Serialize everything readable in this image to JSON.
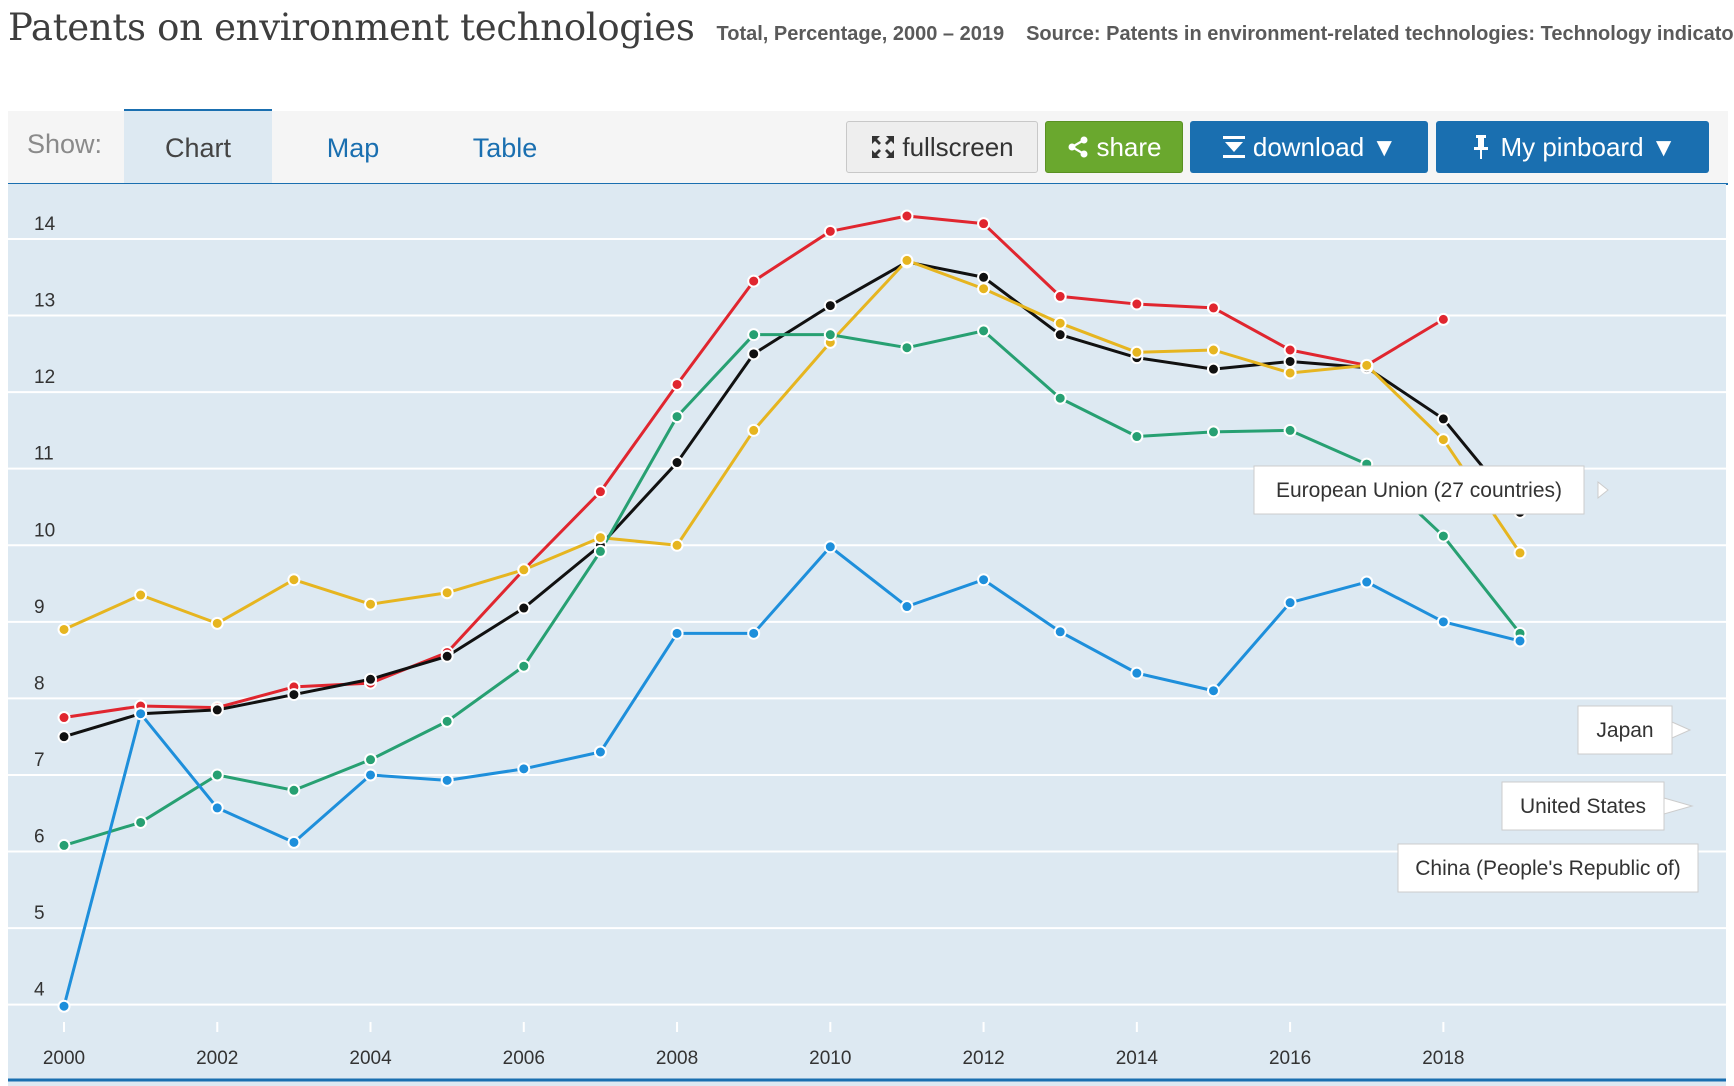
{
  "header": {
    "title": "Patents on environment technologies",
    "subtitle": "Total, Percentage, 2000 – 2019",
    "source": "Source: Patents in environment-related technologies: Technology indicators"
  },
  "toolbar": {
    "show_label": "Show:",
    "tabs": [
      {
        "label": "Chart",
        "active": true
      },
      {
        "label": "Map",
        "active": false
      },
      {
        "label": "Table",
        "active": false
      }
    ],
    "buttons": {
      "fullscreen": "fullscreen",
      "share": "share",
      "download": "download ▼",
      "pinboard": "My pinboard ▼"
    },
    "icons": {
      "fullscreen": "expand-arrows-icon",
      "share": "share-icon",
      "download": "download-arrow-icon",
      "pinboard": "pin-icon"
    },
    "colors": {
      "accent": "#1a6fb0",
      "share": "#6aa82e",
      "chart_bg": "#dde9f2"
    }
  },
  "chart_data": {
    "type": "line",
    "title": "Patents on environment technologies",
    "x": [
      2000,
      2001,
      2002,
      2003,
      2004,
      2005,
      2006,
      2007,
      2008,
      2009,
      2010,
      2011,
      2012,
      2013,
      2014,
      2015,
      2016,
      2017,
      2018,
      2019
    ],
    "x_ticks": [
      2000,
      2002,
      2004,
      2006,
      2008,
      2010,
      2012,
      2014,
      2016,
      2018
    ],
    "y_ticks": [
      4,
      5,
      6,
      7,
      8,
      9,
      10,
      11,
      12,
      13,
      14
    ],
    "ylim": [
      3.8,
      14.3
    ],
    "grid": true,
    "legend": "callouts at right end of series",
    "series": [
      {
        "name": "European Union (27 countries)",
        "color": "#e0262f",
        "values": [
          7.75,
          7.9,
          7.88,
          8.15,
          8.2,
          8.6,
          9.68,
          10.7,
          12.1,
          13.45,
          14.1,
          14.3,
          14.2,
          13.25,
          13.15,
          13.1,
          12.55,
          12.35,
          12.95,
          null
        ]
      },
      {
        "name": "",
        "color": "#111111",
        "values": [
          7.5,
          7.8,
          7.85,
          8.05,
          8.25,
          8.55,
          9.18,
          10.0,
          11.08,
          12.5,
          13.13,
          13.7,
          13.5,
          12.75,
          12.45,
          12.3,
          12.4,
          12.32,
          11.65,
          10.43
        ]
      },
      {
        "name": "Japan",
        "color": "#e6b520",
        "values": [
          8.9,
          9.35,
          8.98,
          9.55,
          9.23,
          9.38,
          9.68,
          10.1,
          10.0,
          11.5,
          12.65,
          13.72,
          13.35,
          12.9,
          12.52,
          12.55,
          12.25,
          12.35,
          11.38,
          9.9
        ]
      },
      {
        "name": "United States",
        "color": "#27a072",
        "values": [
          6.08,
          6.38,
          7.0,
          6.8,
          7.2,
          7.7,
          8.42,
          9.92,
          11.68,
          12.75,
          12.75,
          12.58,
          12.8,
          11.92,
          11.42,
          11.48,
          11.5,
          11.06,
          10.12,
          8.85
        ]
      },
      {
        "name": "China (People's Republic of)",
        "color": "#1e8fdb",
        "values": [
          3.98,
          7.8,
          6.57,
          6.12,
          7.0,
          6.93,
          7.08,
          7.3,
          8.85,
          8.85,
          9.98,
          9.2,
          9.55,
          8.87,
          8.33,
          8.1,
          9.25,
          9.52,
          9.0,
          8.75
        ]
      }
    ]
  }
}
